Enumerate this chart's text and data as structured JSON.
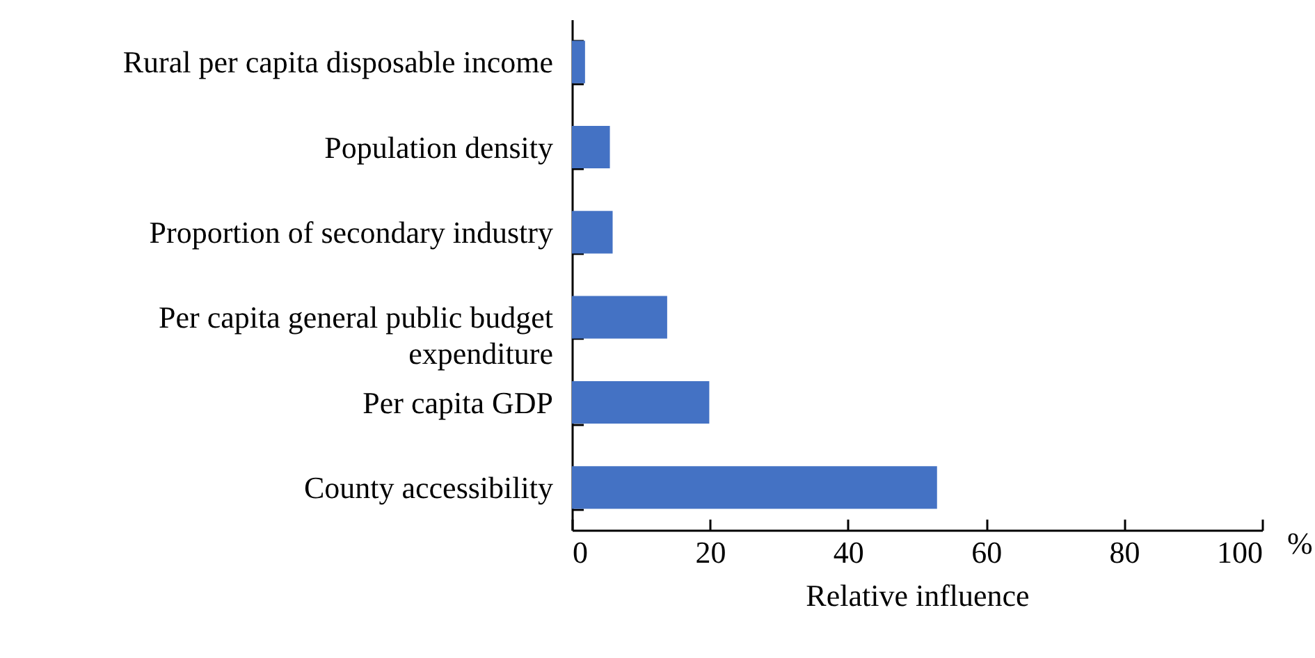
{
  "chart_data": {
    "type": "bar",
    "orientation": "horizontal",
    "xlabel": "Relative influence",
    "categories": [
      "Rural per capita disposable income",
      "Population density",
      "Proportion of secondary industry",
      "Per capita general public budget expenditure",
      "Per capita GDP",
      "County accessibility"
    ],
    "values": [
      1.9,
      5.5,
      5.9,
      13.8,
      19.9,
      52.9
    ],
    "color": "#4472c4",
    "xlim": [
      0,
      100
    ],
    "xticks": [
      0,
      20,
      40,
      60,
      80,
      100
    ],
    "grid": false,
    "annotations": [
      "%"
    ]
  }
}
